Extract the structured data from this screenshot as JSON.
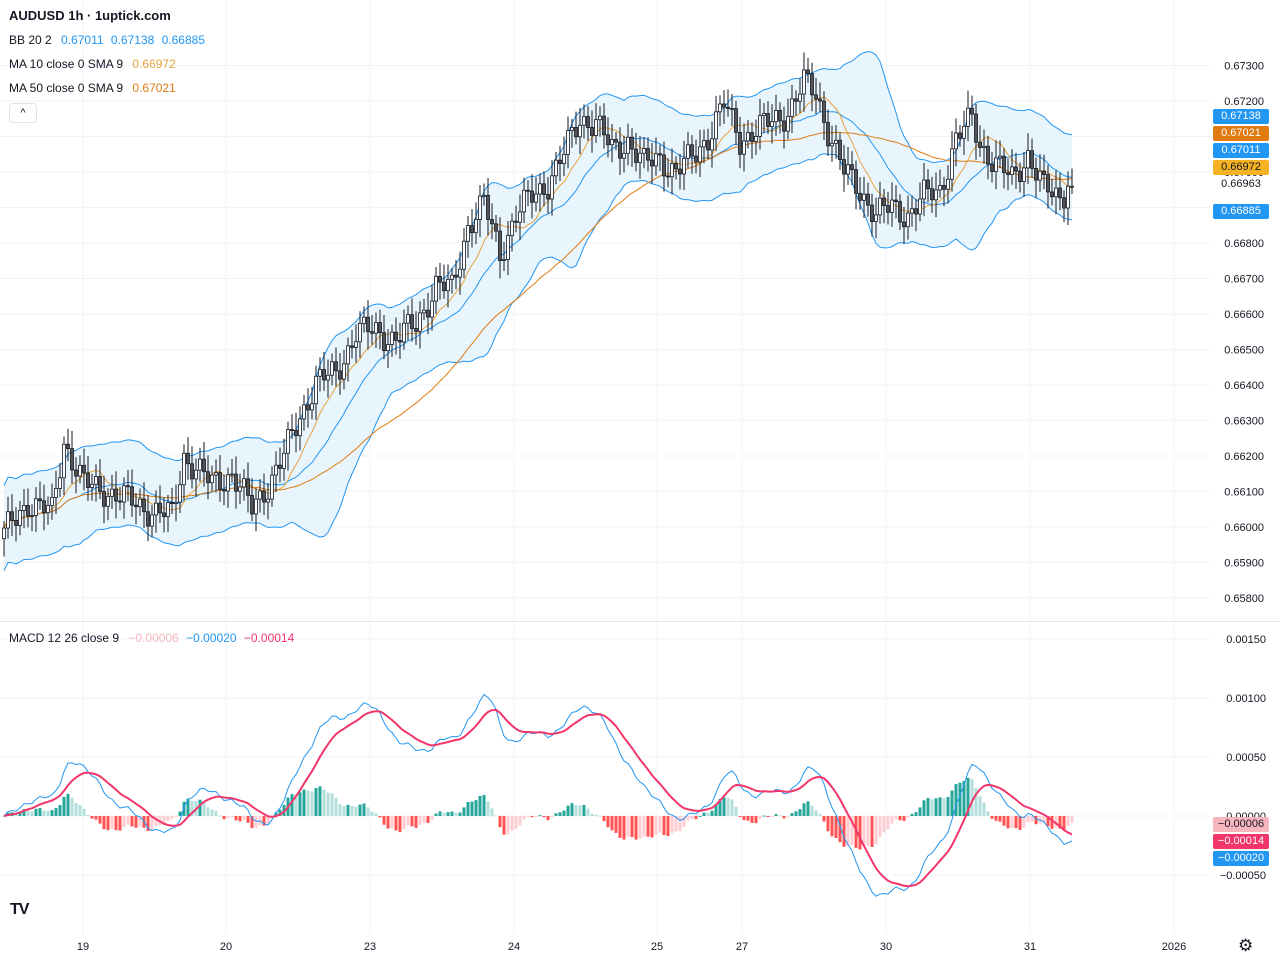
{
  "header": {
    "title": "AUDUSD 1h · 1uptick.com",
    "bb": {
      "label": "BB 20 2",
      "values": [
        "0.67011",
        "0.67138",
        "0.66885"
      ],
      "color": "#2196f3"
    },
    "ma10": {
      "label": "MA 10 close 0 SMA 9",
      "value": "0.66972",
      "color": "#e9a23b"
    },
    "ma50": {
      "label": "MA 50 close 0 SMA 9",
      "value": "0.67021",
      "color": "#e07b12"
    },
    "collapse_icon": "chevron-up-icon",
    "collapse_glyph": "^"
  },
  "macd_legend": {
    "label": "MACD 12 26 close 9",
    "values": [
      "−0.00006",
      "−0.00020",
      "−0.00014"
    ],
    "colors": [
      "#f7b5bd",
      "#2196f3",
      "#f23669"
    ]
  },
  "price_axis": {
    "ticks": [
      "0.67300",
      "0.67200",
      "0.67100",
      "0.67000",
      "0.66900",
      "0.66800",
      "0.66700",
      "0.66600",
      "0.66500",
      "0.66400",
      "0.66300",
      "0.66200",
      "0.66100",
      "0.66000",
      "0.65900",
      "0.65800"
    ],
    "tags": [
      {
        "text": "0.67138",
        "color": "#2196f3",
        "text_color": "#ffffff"
      },
      {
        "text": "0.67021",
        "color": "#e07b12",
        "text_color": "#ffffff"
      },
      {
        "text": "0.67011",
        "color": "#2196f3",
        "text_color": "#ffffff"
      },
      {
        "text": "0.66972",
        "color": "#f5b324",
        "text_color": "#131722"
      },
      {
        "text": "0.66963",
        "color": "#ffffff",
        "text_color": "#131722"
      },
      {
        "text": "0.66885",
        "color": "#2196f3",
        "text_color": "#ffffff"
      }
    ]
  },
  "macd_axis": {
    "ticks": [
      "0.00150",
      "0.00100",
      "0.00050",
      "0.00000",
      "−0.00050"
    ],
    "tags": [
      {
        "text": "−0.00006",
        "color": "#f7b5bd",
        "text_color": "#131722"
      },
      {
        "text": "−0.00014",
        "color": "#f23669",
        "text_color": "#ffffff"
      },
      {
        "text": "−0.00020",
        "color": "#2196f3",
        "text_color": "#ffffff"
      }
    ]
  },
  "time_axis": {
    "labels": [
      "19",
      "20",
      "23",
      "24",
      "25",
      "27",
      "30",
      "31",
      "2026"
    ]
  },
  "footer": {
    "logo": "TV",
    "logo_icon": "tradingview-logo",
    "settings_icon": "gear-icon",
    "settings_glyph": "⚙"
  },
  "colors": {
    "up": "#ffffff",
    "down": "#555555",
    "bb_fill": "#e3f2fd",
    "grid": "#f0f3fa",
    "hist_up_strong": "#26a69a",
    "hist_up_weak": "#b2dfdb",
    "hist_down_strong": "#ff5252",
    "hist_down_weak": "#ffcdd2"
  },
  "chart_data": {
    "type": "candlestick",
    "symbol": "AUDUSD",
    "interval": "1h",
    "ylim": [
      0.6578,
      0.6731
    ],
    "x_labels": [
      "19",
      "20",
      "23",
      "24",
      "25",
      "27",
      "30",
      "31",
      "2026"
    ],
    "anchors": [
      [
        0,
        0.6598
      ],
      [
        6,
        0.6607
      ],
      [
        12,
        0.6604
      ],
      [
        15,
        0.6624
      ],
      [
        20,
        0.6612
      ],
      [
        26,
        0.661
      ],
      [
        32,
        0.6607
      ],
      [
        36,
        0.6605
      ],
      [
        42,
        0.6603
      ],
      [
        45,
        0.662
      ],
      [
        52,
        0.6612
      ],
      [
        57,
        0.6615
      ],
      [
        62,
        0.6605
      ],
      [
        66,
        0.6612
      ],
      [
        70,
        0.662
      ],
      [
        74,
        0.6631
      ],
      [
        78,
        0.6641
      ],
      [
        83,
        0.6643
      ],
      [
        88,
        0.6655
      ],
      [
        93,
        0.6655
      ],
      [
        98,
        0.6653
      ],
      [
        103,
        0.6657
      ],
      [
        108,
        0.6668
      ],
      [
        112,
        0.6667
      ],
      [
        116,
        0.6685
      ],
      [
        120,
        0.6691
      ],
      [
        124,
        0.6677
      ],
      [
        128,
        0.6688
      ],
      [
        132,
        0.6693
      ],
      [
        136,
        0.6697
      ],
      [
        140,
        0.6705
      ],
      [
        144,
        0.6715
      ],
      [
        148,
        0.6714
      ],
      [
        152,
        0.6706
      ],
      [
        156,
        0.6709
      ],
      [
        160,
        0.6702
      ],
      [
        164,
        0.6704
      ],
      [
        168,
        0.67
      ],
      [
        172,
        0.6704
      ],
      [
        176,
        0.671
      ],
      [
        180,
        0.6719
      ],
      [
        184,
        0.6709
      ],
      [
        188,
        0.6712
      ],
      [
        192,
        0.6714
      ],
      [
        196,
        0.6717
      ],
      [
        200,
        0.6725
      ],
      [
        203,
        0.6722
      ],
      [
        206,
        0.6712
      ],
      [
        210,
        0.67
      ],
      [
        214,
        0.6695
      ],
      [
        218,
        0.6688
      ],
      [
        222,
        0.669
      ],
      [
        226,
        0.6688
      ],
      [
        230,
        0.6693
      ],
      [
        234,
        0.6695
      ],
      [
        238,
        0.6709
      ],
      [
        242,
        0.6715
      ],
      [
        244,
        0.6708
      ],
      [
        248,
        0.6702
      ],
      [
        252,
        0.6698
      ],
      [
        256,
        0.6705
      ],
      [
        260,
        0.6695
      ],
      [
        264,
        0.6693
      ],
      [
        266,
        0.6696
      ]
    ],
    "bb": {
      "upper": "0.67138",
      "basis": "0.67011",
      "lower": "0.66885"
    },
    "ma10": "0.66972",
    "ma50": "0.67021",
    "macd": {
      "ylim": [
        -0.0007,
        0.0016
      ],
      "macd": -0.0002,
      "signal": -0.00014,
      "histogram": -6e-05
    }
  }
}
